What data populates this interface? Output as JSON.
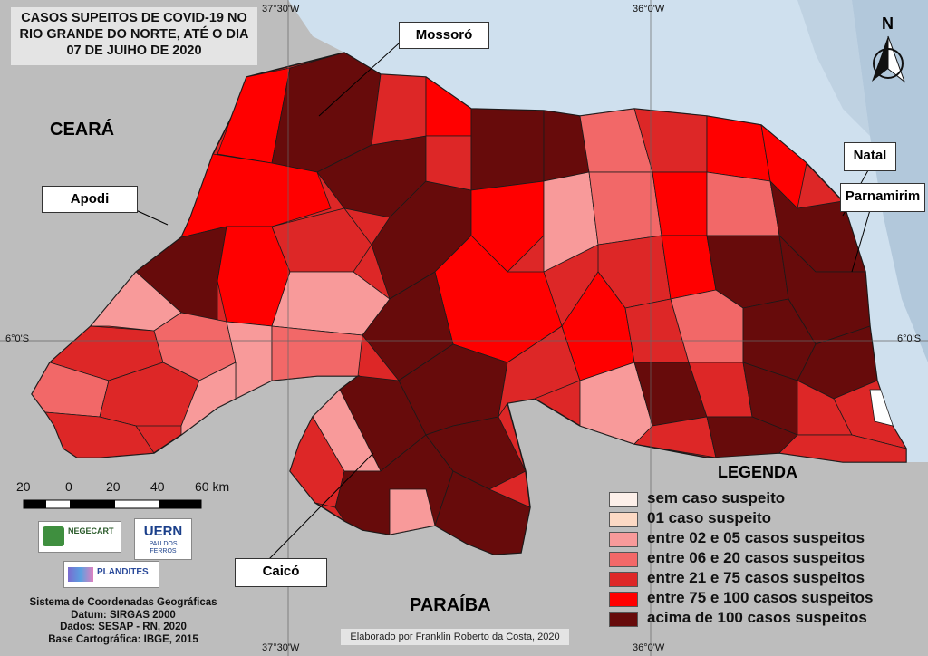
{
  "title": "CASOS SUPEITOS DE COVID-19 NO RIO GRANDE DO NORTE, ATÉ O DIA 07 DE JUIHO DE 2020",
  "region_labels": {
    "ceara": "CEARÁ",
    "paraiba": "PARAÍBA"
  },
  "city_labels": {
    "mossoro": "Mossoró",
    "apodi": "Apodi",
    "natal": "Natal",
    "parnamirim": "Parnamirim",
    "caico": "Caicó"
  },
  "graticule": {
    "top_left": "37°30'W",
    "top_right": "36°0'W",
    "bottom_left": "37°30'W",
    "bottom_right": "36°0'W",
    "left_lat": "6°0'S",
    "right_lat": "6°0'S"
  },
  "north_label": "N",
  "scale": {
    "labels": [
      "20",
      "0",
      "20",
      "40",
      "60 km"
    ]
  },
  "legend": {
    "title": "LEGENDA",
    "items": [
      {
        "label": "sem caso suspeito",
        "color": "#fdf0ea"
      },
      {
        "label": "01 caso suspeito",
        "color": "#fcd9c4"
      },
      {
        "label": "entre 02 e 05 casos suspeitos",
        "color": "#f89a9a"
      },
      {
        "label": "entre 06 e 20 casos suspeitos",
        "color": "#f26868"
      },
      {
        "label": "entre 21 e 75 casos suspeitos",
        "color": "#dd2727"
      },
      {
        "label": "entre 75 e 100 casos suspeitos",
        "color": "#ff0000"
      },
      {
        "label": "acima de 100 casos suspeitos",
        "color": "#670b0b"
      }
    ]
  },
  "logos": {
    "negecart": "NEGECART",
    "uern": "UERN",
    "uern_sub": "PAU DOS FERROS",
    "plandites": "PLANDITES"
  },
  "metadata": [
    "Sistema de Coordenadas Geográficas",
    "Datum: SIRGAS 2000",
    "Dados: SESAP - RN, 2020",
    "Base Cartográfica: IBGE, 2015"
  ],
  "credit": "Elaborado por Franklin Roberto da Costa, 2020",
  "colors": {
    "sea": "#cfe0ee",
    "land_neighbor": "#bdbdbd",
    "border": "#1a1a1a"
  }
}
